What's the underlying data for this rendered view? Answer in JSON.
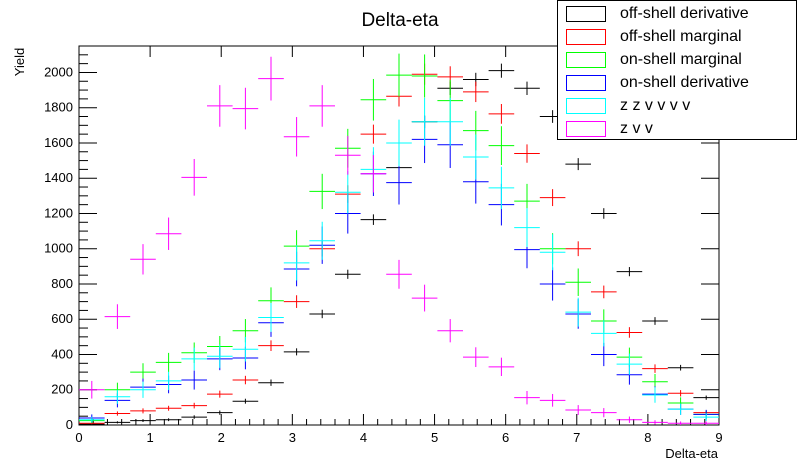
{
  "chart_data": {
    "type": "scatter",
    "title": "Delta-eta",
    "xlabel": "Delta-eta",
    "ylabel": "Yield",
    "xlim": [
      0,
      9
    ],
    "ylim": [
      0,
      2150
    ],
    "xticks": [
      "0",
      "1",
      "2",
      "3",
      "4",
      "5",
      "6",
      "7",
      "8",
      "9"
    ],
    "yticks": [
      "0",
      "200",
      "400",
      "600",
      "800",
      "1000",
      "1200",
      "1400",
      "1600",
      "1800",
      "2000"
    ],
    "bin_width": 0.36,
    "x": [
      0.18,
      0.54,
      0.9,
      1.26,
      1.62,
      1.98,
      2.34,
      2.7,
      3.06,
      3.42,
      3.78,
      4.14,
      4.5,
      4.86,
      5.22,
      5.58,
      5.94,
      6.3,
      6.66,
      7.02,
      7.38,
      7.74,
      8.1,
      8.46,
      8.82
    ],
    "series": [
      {
        "name": "off-shell derivative",
        "color": "#000000",
        "values": [
          5,
          15,
          25,
          30,
          45,
          70,
          135,
          240,
          415,
          630,
          855,
          1165,
          1460,
          1720,
          1910,
          1960,
          2010,
          1910,
          1750,
          1480,
          1200,
          870,
          590,
          325,
          155
        ],
        "errors": [
          4,
          6,
          8,
          8,
          10,
          12,
          14,
          18,
          20,
          24,
          26,
          30,
          34,
          36,
          38,
          38,
          40,
          38,
          36,
          34,
          30,
          26,
          22,
          16,
          12
        ]
      },
      {
        "name": "off-shell marginal",
        "color": "#ff0000",
        "values": [
          10,
          65,
          80,
          95,
          110,
          175,
          255,
          450,
          700,
          1000,
          1310,
          1650,
          1865,
          1990,
          1975,
          1890,
          1765,
          1540,
          1290,
          1000,
          755,
          525,
          320,
          180,
          70
        ],
        "errors": [
          6,
          12,
          14,
          14,
          16,
          20,
          24,
          30,
          36,
          44,
          50,
          54,
          58,
          60,
          60,
          58,
          56,
          52,
          48,
          42,
          36,
          30,
          24,
          18,
          12
        ]
      },
      {
        "name": "on-shell marginal",
        "color": "#00ff00",
        "values": [
          25,
          200,
          300,
          355,
          410,
          445,
          535,
          705,
          1015,
          1325,
          1570,
          1845,
          1985,
          1980,
          1840,
          1670,
          1585,
          1270,
          1000,
          810,
          590,
          385,
          245,
          125,
          60
        ],
        "errors": [
          14,
          40,
          50,
          54,
          58,
          60,
          66,
          76,
          90,
          100,
          110,
          118,
          122,
          122,
          118,
          112,
          110,
          98,
          88,
          78,
          66,
          54,
          44,
          32,
          22
        ]
      },
      {
        "name": "on-shell derivative",
        "color": "#0000ff",
        "values": [
          40,
          140,
          215,
          230,
          255,
          375,
          380,
          580,
          885,
          1020,
          1200,
          1425,
          1375,
          1620,
          1590,
          1380,
          1250,
          995,
          800,
          630,
          400,
          285,
          175,
          90,
          60
        ],
        "errors": [
          20,
          40,
          48,
          50,
          54,
          64,
          64,
          80,
          98,
          106,
          114,
          126,
          124,
          134,
          132,
          124,
          118,
          106,
          94,
          84,
          66,
          56,
          44,
          32,
          26
        ]
      },
      {
        "name": "z z v v v v",
        "color": "#00ffff",
        "values": [
          30,
          160,
          200,
          250,
          375,
          390,
          430,
          610,
          920,
          1045,
          1320,
          1450,
          1600,
          1720,
          1720,
          1520,
          1345,
          1120,
          980,
          640,
          520,
          345,
          170,
          90,
          45
        ],
        "errors": [
          16,
          40,
          46,
          52,
          64,
          66,
          70,
          82,
          100,
          108,
          120,
          126,
          132,
          136,
          136,
          128,
          120,
          110,
          102,
          82,
          74,
          60,
          44,
          32,
          22
        ]
      },
      {
        "name": "z v v",
        "color": "#ff00ff",
        "values": [
          200,
          615,
          940,
          1085,
          1405,
          1810,
          1795,
          1965,
          1635,
          1810,
          1530,
          1425,
          855,
          720,
          535,
          385,
          330,
          155,
          140,
          85,
          70,
          30,
          15,
          10,
          10
        ],
        "errors": [
          50,
          70,
          86,
          92,
          104,
          118,
          118,
          124,
          112,
          118,
          110,
          106,
          82,
          76,
          66,
          56,
          52,
          38,
          36,
          28,
          26,
          18,
          12,
          10,
          10
        ]
      }
    ]
  }
}
